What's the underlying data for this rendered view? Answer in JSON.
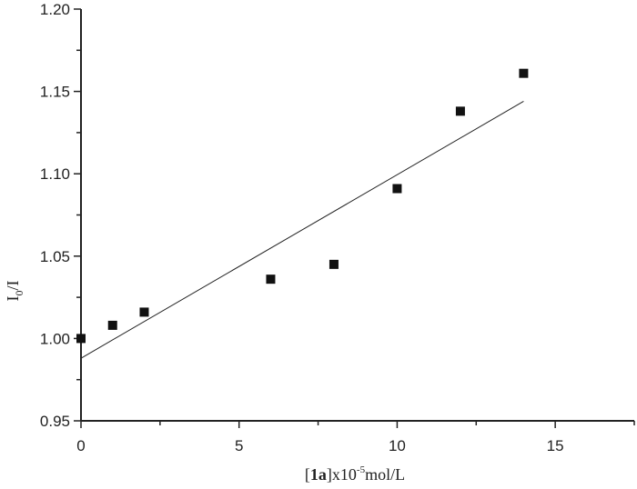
{
  "chart_data": {
    "type": "scatter",
    "title": "",
    "xlabel": "[1a]x10-5mol/L",
    "xlabel_parts": {
      "bracket_open": "[",
      "bold": "1a",
      "mid": "]x10",
      "sup": "-5",
      "end": "mol/L"
    },
    "ylabel": "I0/I",
    "ylabel_parts": {
      "main": "I",
      "sub": "0",
      "end": "/I"
    },
    "xlim": [
      0,
      17.5
    ],
    "ylim": [
      0.95,
      1.2
    ],
    "xticks": [
      0,
      5,
      10,
      15
    ],
    "xtick_labels": [
      "0",
      "5",
      "10",
      "15"
    ],
    "yticks": [
      0.95,
      1.0,
      1.05,
      1.1,
      1.15,
      1.2
    ],
    "ytick_labels": [
      "0.95",
      "1.00",
      "1.05",
      "1.10",
      "1.15",
      "1.20"
    ],
    "grid": false,
    "series": [
      {
        "name": "data",
        "type": "scatter",
        "marker": "square",
        "color": "#111111",
        "x": [
          0,
          1,
          2,
          6,
          8,
          10,
          12,
          14
        ],
        "y": [
          1.0,
          1.008,
          1.016,
          1.036,
          1.045,
          1.091,
          1.138,
          1.161
        ]
      },
      {
        "name": "linear fit",
        "type": "line",
        "color": "#222222",
        "x": [
          0,
          14
        ],
        "y": [
          0.988,
          1.144
        ]
      }
    ]
  }
}
